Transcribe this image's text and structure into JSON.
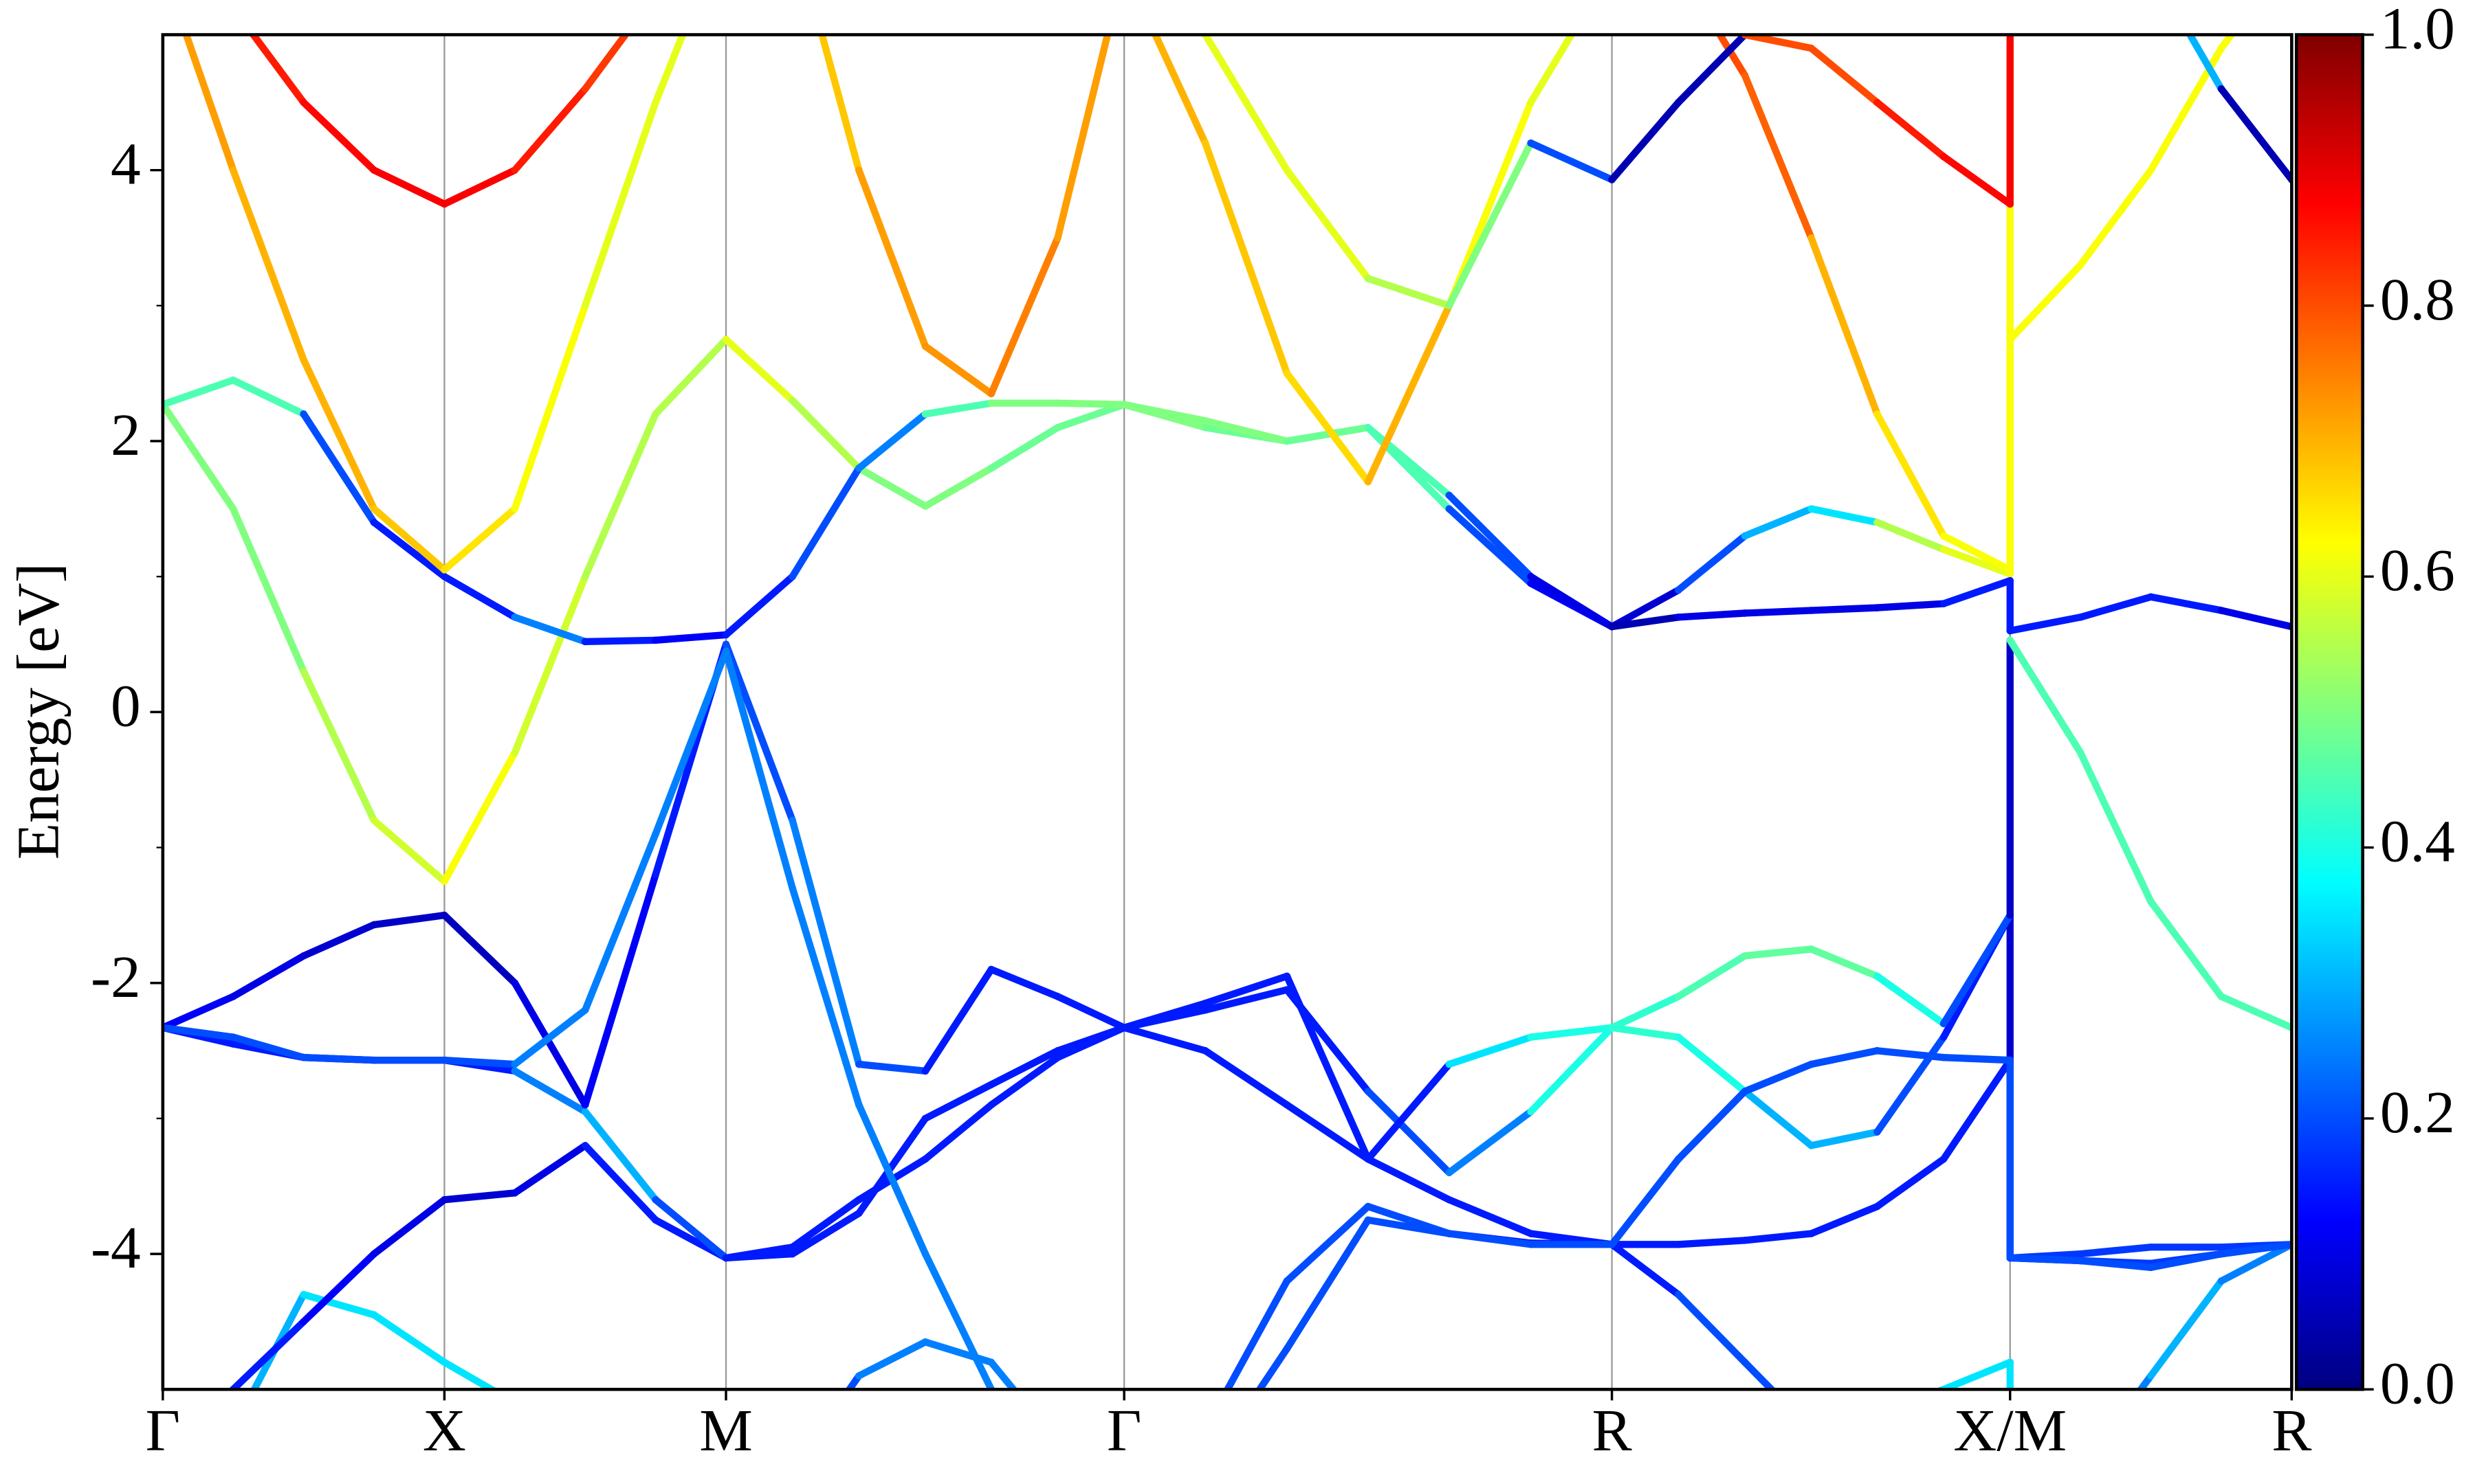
{
  "chart_data": {
    "type": "line",
    "ylabel": "Energy [eV]",
    "xlim": [
      0,
      3.78
    ],
    "xticks": [
      {
        "value": 0,
        "label": "Γ"
      },
      {
        "value": 0.5,
        "label": "X"
      },
      {
        "value": 1.0,
        "label": "M"
      },
      {
        "value": 1.707,
        "label": "Γ"
      },
      {
        "value": 2.573,
        "label": "R"
      },
      {
        "value": 3.28,
        "label": "X/M"
      },
      {
        "value": 3.78,
        "label": "R"
      }
    ],
    "ylim": [
      -5,
      5
    ],
    "yticks": [
      -4,
      -2,
      0,
      2,
      4
    ],
    "yminorticks": [
      -3,
      -1,
      1,
      3
    ],
    "grid": true,
    "colormap": "jet",
    "colorbar": {
      "lim": [
        0,
        1
      ],
      "ticks": [
        {
          "value": 0,
          "label": "0.0"
        },
        0.2,
        0.4,
        0.6,
        0.8,
        {
          "value": 1,
          "label": "1.0"
        }
      ]
    },
    "x": [
      0,
      0.125,
      0.25,
      0.375,
      0.5,
      0.625,
      0.75,
      0.875,
      1.0,
      1.118,
      1.236,
      1.354,
      1.471,
      1.589,
      1.707,
      1.851,
      1.996,
      2.14,
      2.284,
      2.429,
      2.573,
      2.691,
      2.809,
      2.927,
      3.044,
      3.162,
      3.28,
      3.28,
      3.405,
      3.53,
      3.655,
      3.78
    ],
    "series": [
      {
        "values": [
          -6.2,
          -5.3,
          -4.3,
          -4.45,
          -4.8,
          -5.1,
          -5.5,
          -5.8,
          -6.0,
          -5.6,
          -4.9,
          -4.65,
          -4.8,
          -5.4,
          -6.0,
          -5.6,
          -4.7,
          -3.75,
          -3.85,
          -3.92,
          -3.93,
          -4.3,
          -4.8,
          -5.3,
          -5.2,
          -5.0,
          -4.8,
          -6.0,
          -5.6,
          -4.9,
          -4.2,
          -3.93
        ],
        "weights": [
          0.2,
          0.3,
          0.35,
          0.35,
          0.35,
          0.35,
          0.3,
          0.25,
          0.2,
          0.2,
          0.25,
          0.25,
          0.25,
          0.2,
          0.2,
          0.2,
          0.2,
          0.2,
          0.15,
          0.15,
          0.15,
          0.2,
          0.2,
          0.25,
          0.3,
          0.35,
          0.35,
          0.2,
          0.25,
          0.3,
          0.25,
          0.2
        ]
      },
      {
        "values": [
          -6.0,
          -5.0,
          -4.5,
          -4.0,
          -3.6,
          -3.55,
          -3.2,
          -3.75,
          -4.03,
          -3.95,
          -3.6,
          -3.3,
          -2.9,
          -2.55,
          -2.33,
          -2.5,
          -2.9,
          -3.3,
          -3.6,
          -3.85,
          -3.93,
          -3.93,
          -3.9,
          -3.85,
          -3.65,
          -3.3,
          -2.57,
          -4.03,
          -4.05,
          -4.07,
          -4.0,
          -3.93
        ],
        "weights": [
          0.15,
          0.15,
          0.12,
          0.1,
          0.08,
          0.1,
          0.15,
          0.15,
          0.15,
          0.15,
          0.15,
          0.15,
          0.15,
          0.15,
          0.15,
          0.15,
          0.15,
          0.15,
          0.15,
          0.15,
          0.15,
          0.15,
          0.15,
          0.15,
          0.15,
          0.15,
          0.15,
          0.18,
          0.18,
          0.18,
          0.18,
          0.18
        ]
      },
      {
        "values": [
          -2.33,
          -2.45,
          -2.55,
          -2.57,
          -2.57,
          -2.65,
          -2.95,
          -3.6,
          -4.03,
          -4.0,
          -3.7,
          -3.0,
          -2.75,
          -2.5,
          -2.33,
          -2.2,
          -2.05,
          -2.8,
          -3.4,
          -2.95,
          -2.33,
          -2.4,
          -2.8,
          -3.2,
          -3.1,
          -2.4,
          -1.5,
          -4.03,
          -4.0,
          -3.95,
          -3.95,
          -3.93
        ],
        "weights": [
          0.15,
          0.15,
          0.15,
          0.15,
          0.15,
          0.25,
          0.3,
          0.2,
          0.15,
          0.15,
          0.15,
          0.15,
          0.15,
          0.15,
          0.15,
          0.15,
          0.15,
          0.2,
          0.25,
          0.4,
          0.42,
          0.4,
          0.3,
          0.3,
          0.2,
          0.15,
          0.08,
          0.18,
          0.18,
          0.18,
          0.18,
          0.18
        ]
      },
      {
        "values": [
          -2.33,
          -2.1,
          -1.8,
          -1.57,
          -1.5,
          -2.0,
          -2.9,
          -1.2,
          0.5,
          -0.8,
          -2.6,
          -2.65,
          -1.9,
          -2.1,
          -2.33,
          -2.15,
          -1.95,
          -3.3,
          -2.6,
          -2.4,
          -2.33,
          -2.1,
          -1.8,
          -1.75,
          -1.95,
          -2.3,
          -1.5,
          0.53,
          -0.3,
          -1.4,
          -2.1,
          -2.33
        ],
        "weights": [
          0.12,
          0.1,
          0.08,
          0.07,
          0.06,
          0.1,
          0.12,
          0.15,
          0.2,
          0.25,
          0.2,
          0.15,
          0.15,
          0.15,
          0.15,
          0.15,
          0.15,
          0.15,
          0.35,
          0.4,
          0.42,
          0.45,
          0.47,
          0.47,
          0.4,
          0.2,
          0.07,
          0.45,
          0.45,
          0.45,
          0.45,
          0.45
        ]
      },
      {
        "values": [
          -2.33,
          -2.4,
          -2.55,
          -2.57,
          -2.57,
          -2.6,
          -2.2,
          -0.9,
          0.45,
          -1.3,
          -2.9,
          -4.0,
          -5.0,
          -5.8,
          -6.2,
          -5.3,
          -4.2,
          -3.65,
          -3.85,
          -3.93,
          -3.93,
          -3.3,
          -2.8,
          -2.6,
          -2.5,
          -2.55,
          -2.57,
          -4.03,
          -4.05,
          -4.1,
          -4.0,
          -3.93
        ],
        "weights": [
          0.2,
          0.2,
          0.2,
          0.2,
          0.2,
          0.25,
          0.25,
          0.25,
          0.25,
          0.25,
          0.25,
          0.25,
          0.25,
          0.25,
          0.2,
          0.2,
          0.2,
          0.2,
          0.2,
          0.2,
          0.2,
          0.2,
          0.2,
          0.2,
          0.2,
          0.2,
          0.2,
          0.2,
          0.2,
          0.2,
          0.2,
          0.2
        ]
      },
      {
        "values": [
          2.27,
          1.5,
          0.3,
          -0.8,
          -1.25,
          -0.3,
          1.0,
          2.2,
          2.75,
          2.3,
          1.8,
          1.52,
          1.8,
          2.1,
          2.27,
          2.1,
          2.0,
          2.1,
          1.5,
          0.95,
          0.63,
          0.9,
          1.3,
          1.5,
          1.4,
          1.2,
          1.02,
          2.75,
          3.3,
          4.0,
          4.9,
          5.6
        ],
        "weights": [
          0.5,
          0.5,
          0.55,
          0.58,
          0.62,
          0.58,
          0.55,
          0.55,
          0.6,
          0.55,
          0.5,
          0.5,
          0.48,
          0.48,
          0.5,
          0.48,
          0.5,
          0.45,
          0.2,
          0.12,
          0.08,
          0.2,
          0.3,
          0.35,
          0.55,
          0.6,
          0.62,
          0.62,
          0.62,
          0.62,
          0.62,
          0.62
        ]
      },
      {
        "values": [
          2.27,
          2.45,
          2.2,
          1.4,
          1.0,
          0.7,
          0.52,
          0.53,
          0.57,
          1.0,
          1.8,
          2.2,
          2.28,
          2.28,
          2.27,
          2.15,
          2.0,
          2.1,
          1.6,
          1.0,
          0.63,
          0.7,
          0.73,
          0.75,
          0.77,
          0.8,
          0.97,
          0.6,
          0.7,
          0.85,
          0.75,
          0.63
        ],
        "weights": [
          0.45,
          0.45,
          0.2,
          0.15,
          0.15,
          0.25,
          0.15,
          0.12,
          0.15,
          0.2,
          0.25,
          0.45,
          0.5,
          0.5,
          0.5,
          0.5,
          0.48,
          0.45,
          0.2,
          0.1,
          0.05,
          0.1,
          0.1,
          0.1,
          0.1,
          0.15,
          0.15,
          0.15,
          0.15,
          0.15,
          0.1,
          0.05
        ]
      },
      {
        "values": [
          5.5,
          4.0,
          2.6,
          1.5,
          1.05,
          1.5,
          3.0,
          4.5,
          5.8,
          5.8,
          4.0,
          2.7,
          2.35,
          3.5,
          5.5,
          4.2,
          2.5,
          1.7,
          3.0,
          4.5,
          5.5,
          5.5,
          4.7,
          3.5,
          2.2,
          1.3,
          1.05,
          6.0,
          6.0,
          6.0,
          6.0,
          6.0
        ],
        "weights": [
          0.72,
          0.7,
          0.7,
          0.68,
          0.65,
          0.62,
          0.6,
          0.6,
          0.62,
          0.68,
          0.72,
          0.73,
          0.75,
          0.72,
          0.7,
          0.68,
          0.66,
          0.7,
          0.62,
          0.6,
          0.62,
          0.8,
          0.78,
          0.7,
          0.65,
          0.62,
          0.62,
          0.7,
          0.7,
          0.7,
          0.7,
          0.7
        ]
      },
      {
        "values": [
          6.0,
          5.2,
          4.5,
          4.0,
          3.75,
          4.0,
          4.6,
          5.3,
          6.0,
          6.0,
          6.0,
          6.0,
          6.0,
          6.0,
          6.0,
          5.0,
          4.0,
          3.2,
          3.0,
          4.2,
          3.93,
          4.5,
          5.0,
          4.9,
          4.5,
          4.1,
          3.75,
          6.0,
          6.0,
          5.5,
          4.6,
          3.93
        ],
        "weights": [
          0.85,
          0.85,
          0.87,
          0.88,
          0.88,
          0.85,
          0.82,
          0.8,
          0.8,
          0.8,
          0.8,
          0.8,
          0.8,
          0.8,
          0.6,
          0.6,
          0.6,
          0.55,
          0.5,
          0.2,
          0.05,
          0.05,
          0.8,
          0.8,
          0.85,
          0.87,
          0.88,
          0.05,
          0.05,
          0.3,
          0.05,
          0.05
        ]
      }
    ]
  }
}
